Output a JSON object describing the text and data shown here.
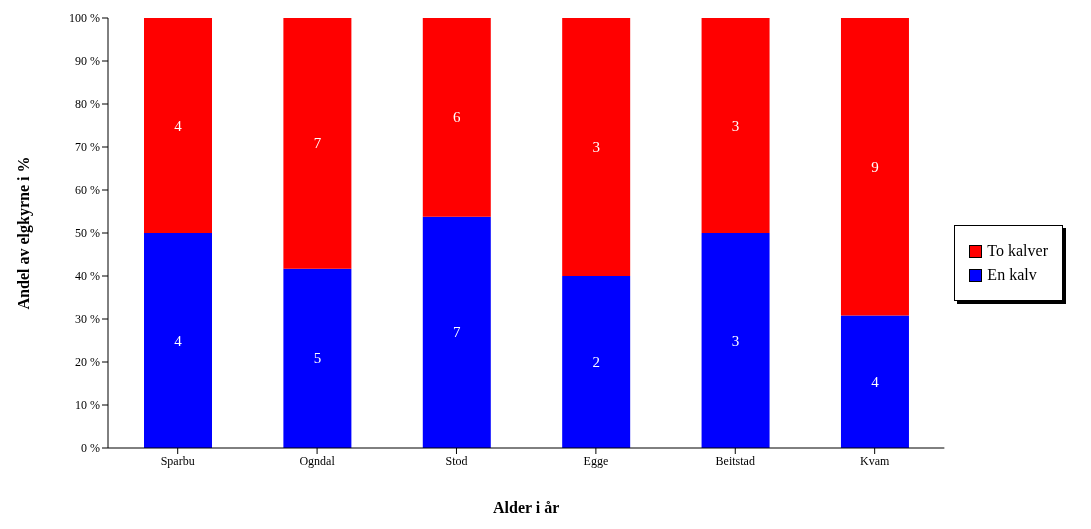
{
  "chart_data": {
    "type": "bar",
    "stacked": true,
    "xlabel": "Alder i år",
    "ylabel": "Andel av elgkyrne i %",
    "categories": [
      "Sparbu",
      "Ogndal",
      "Stod",
      "Egge",
      "Beitstad",
      "Kvam"
    ],
    "series": [
      {
        "name": "En kalv",
        "color": "#0000ff",
        "values": [
          50,
          41.7,
          53.8,
          40,
          50,
          30.8
        ]
      },
      {
        "name": "To kalver",
        "color": "#ff0000",
        "values": [
          50,
          58.3,
          46.2,
          60,
          50,
          69.2
        ]
      }
    ],
    "annotations": [
      "4",
      "5",
      "7",
      "2",
      "3",
      "4",
      "4",
      "7",
      "6",
      "3",
      "3",
      "9"
    ],
    "ylim": [
      0,
      100
    ],
    "yticks": [
      {
        "value": 0,
        "label": "0 %"
      },
      {
        "value": 10,
        "label": "10 %"
      },
      {
        "value": 20,
        "label": "20 %"
      },
      {
        "value": 30,
        "label": "30 %"
      },
      {
        "value": 40,
        "label": "40 %"
      },
      {
        "value": 50,
        "label": "50 %"
      },
      {
        "value": 60,
        "label": "60 %"
      },
      {
        "value": 70,
        "label": "70 %"
      },
      {
        "value": 80,
        "label": "80 %"
      },
      {
        "value": 90,
        "label": "90 %"
      },
      {
        "value": 100,
        "label": "100 %"
      }
    ],
    "grid": false,
    "legend": "right"
  }
}
